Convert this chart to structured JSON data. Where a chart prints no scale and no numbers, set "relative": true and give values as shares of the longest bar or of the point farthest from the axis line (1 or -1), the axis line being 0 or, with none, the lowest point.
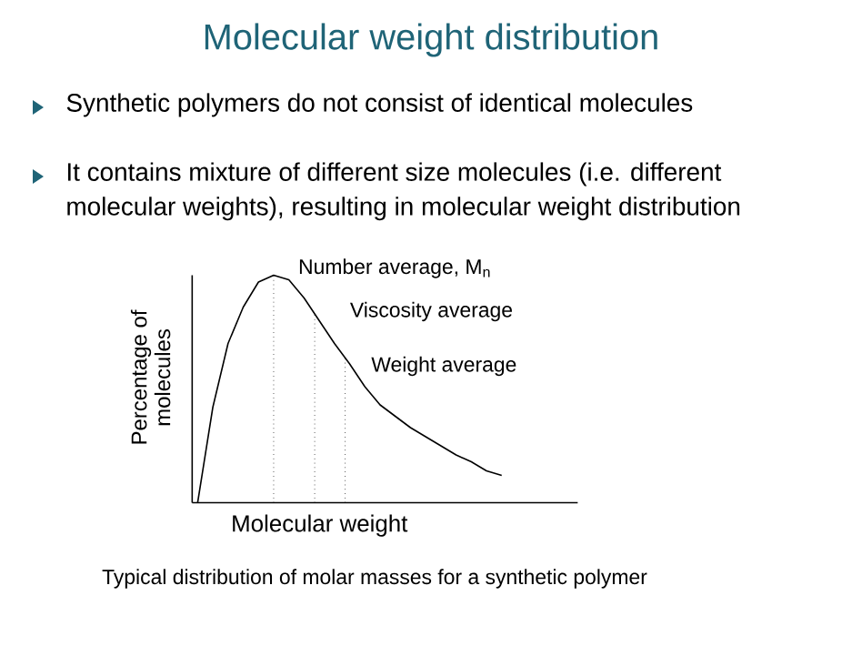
{
  "chart_data": {
    "type": "line",
    "relative": true,
    "title": "Molecular weight distribution",
    "xlabel": "Molecular weight",
    "ylabel": "Percentage of molecules",
    "categories": [
      null,
      null,
      null,
      null,
      null,
      null,
      null,
      null,
      null,
      null,
      null,
      null,
      null,
      null,
      null,
      null,
      null,
      null,
      null,
      null,
      null
    ],
    "series": [
      {
        "color": "#000000",
        "values": [
          0,
          0.42,
          0.7,
          0.86,
          0.97,
          1.0,
          0.98,
          0.9,
          0.8,
          0.7,
          0.61,
          0.51,
          0.43,
          0.38,
          0.33,
          0.29,
          0.25,
          0.21,
          0.18,
          0.14,
          0.12
        ]
      }
    ],
    "annotations": [
      "Synthetic polymers do not consist of identical molecules",
      "It contains mixture of different size molecules (i.e. different molecular weights), resulting in molecular weight distribution",
      "Number average, M$_{n}$",
      "Viscosity average",
      "Weight average",
      "Typical distribution of molar masses for a synthetic polymer"
    ],
    "marker": "none",
    "line_style": "solid"
  }
}
